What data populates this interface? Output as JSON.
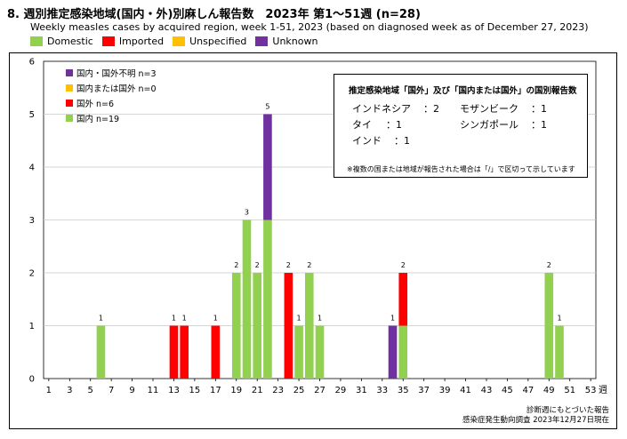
{
  "title": "8. 週別推定感染地域(国内・外)別麻しん報告数　2023年 第1〜51週 (n=28)",
  "subtitle": "Weekly measles cases by acquired region, week 1-51, 2023 (based on diagnosed week as of December 27, 2023)",
  "legend": [
    {
      "label": "Domestic",
      "color": "#92d050"
    },
    {
      "label": "Imported",
      "color": "#ff0000"
    },
    {
      "label": "Unspecified",
      "color": "#ffc000"
    },
    {
      "label": "Unknown",
      "color": "#7030a0"
    }
  ],
  "inner_legend": [
    {
      "label": "国内・国外不明 n=3",
      "color": "#7030a0"
    },
    {
      "label": "国内または国外 n=0",
      "color": "#ffc000"
    },
    {
      "label": "国外 n=6",
      "color": "#ff0000"
    },
    {
      "label": "国内 n=19",
      "color": "#92d050"
    }
  ],
  "info_box": {
    "title": "推定感染地域「国外」及び「国内または国外」の国別報告数",
    "rows": [
      {
        "country": "インドネシア",
        "count": "：2"
      },
      {
        "country": "モザンビーク",
        "count": "：1"
      },
      {
        "country": "タイ",
        "count": "：1"
      },
      {
        "country": "シンガポール",
        "count": "：1"
      },
      {
        "country": "インド",
        "count": "：1"
      }
    ],
    "note": "※複数の国または地域が報告された場合は「/」で区切って示しています"
  },
  "footer": {
    "line1": "診断週にもとづいた報告",
    "line2": "感染症発生動向調査 2023年12月27日現在"
  },
  "x_unit": "週",
  "chart_data": {
    "type": "bar",
    "stacked": true,
    "xlim": [
      1,
      53
    ],
    "ylim": [
      0,
      6
    ],
    "yticks": [
      0,
      1,
      2,
      3,
      4,
      5,
      6
    ],
    "xticks": [
      1,
      3,
      5,
      7,
      9,
      11,
      13,
      15,
      17,
      19,
      21,
      23,
      25,
      27,
      29,
      31,
      33,
      35,
      37,
      39,
      41,
      43,
      45,
      47,
      49,
      51,
      53
    ],
    "grid": true,
    "series": [
      {
        "name": "Domestic",
        "color": "#92d050",
        "points": [
          [
            6,
            1
          ],
          [
            19,
            2
          ],
          [
            20,
            3
          ],
          [
            21,
            2
          ],
          [
            22,
            3
          ],
          [
            25,
            1
          ],
          [
            26,
            2
          ],
          [
            27,
            1
          ],
          [
            35,
            1
          ],
          [
            49,
            2
          ],
          [
            50,
            1
          ]
        ]
      },
      {
        "name": "Imported",
        "color": "#ff0000",
        "points": [
          [
            13,
            1
          ],
          [
            14,
            1
          ],
          [
            17,
            1
          ],
          [
            24,
            2
          ],
          [
            35,
            1
          ]
        ]
      },
      {
        "name": "Unspecified",
        "color": "#ffc000",
        "points": []
      },
      {
        "name": "Unknown",
        "color": "#7030a0",
        "points": [
          [
            22,
            2
          ],
          [
            34,
            1
          ]
        ]
      }
    ],
    "totals": [
      [
        6,
        1
      ],
      [
        13,
        1
      ],
      [
        14,
        1
      ],
      [
        17,
        1
      ],
      [
        19,
        2
      ],
      [
        20,
        3
      ],
      [
        21,
        2
      ],
      [
        22,
        5
      ],
      [
        24,
        2
      ],
      [
        25,
        1
      ],
      [
        26,
        2
      ],
      [
        27,
        1
      ],
      [
        34,
        1
      ],
      [
        35,
        2
      ],
      [
        49,
        2
      ],
      [
        50,
        1
      ]
    ]
  }
}
